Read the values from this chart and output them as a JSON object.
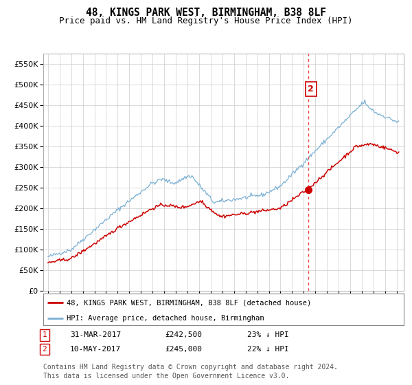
{
  "title": "48, KINGS PARK WEST, BIRMINGHAM, B38 8LF",
  "subtitle": "Price paid vs. HM Land Registry's House Price Index (HPI)",
  "title_fontsize": 10.5,
  "subtitle_fontsize": 9,
  "background_color": "#ffffff",
  "plot_bg_color": "#ffffff",
  "grid_color": "#cccccc",
  "ylim": [
    0,
    575000
  ],
  "yticks": [
    0,
    50000,
    100000,
    150000,
    200000,
    250000,
    300000,
    350000,
    400000,
    450000,
    500000,
    550000
  ],
  "red_line_color": "#cc0000",
  "blue_line_color": "#7ab0d4",
  "marker_color": "#cc0000",
  "dashed_line_color": "#ee4444",
  "annotation_label": "2",
  "marker_value": 245000,
  "dashed_year": 2017.37,
  "sale1_label": "1",
  "sale1_date": "31-MAR-2017",
  "sale1_price": "£242,500",
  "sale1_pct": "23% ↓ HPI",
  "sale2_label": "2",
  "sale2_date": "10-MAY-2017",
  "sale2_price": "£245,000",
  "sale2_pct": "22% ↓ HPI",
  "legend1_label": "48, KINGS PARK WEST, BIRMINGHAM, B38 8LF (detached house)",
  "legend2_label": "HPI: Average price, detached house, Birmingham",
  "footer_line1": "Contains HM Land Registry data © Crown copyright and database right 2024.",
  "footer_line2": "This data is licensed under the Open Government Licence v3.0.",
  "footer_fontsize": 7
}
